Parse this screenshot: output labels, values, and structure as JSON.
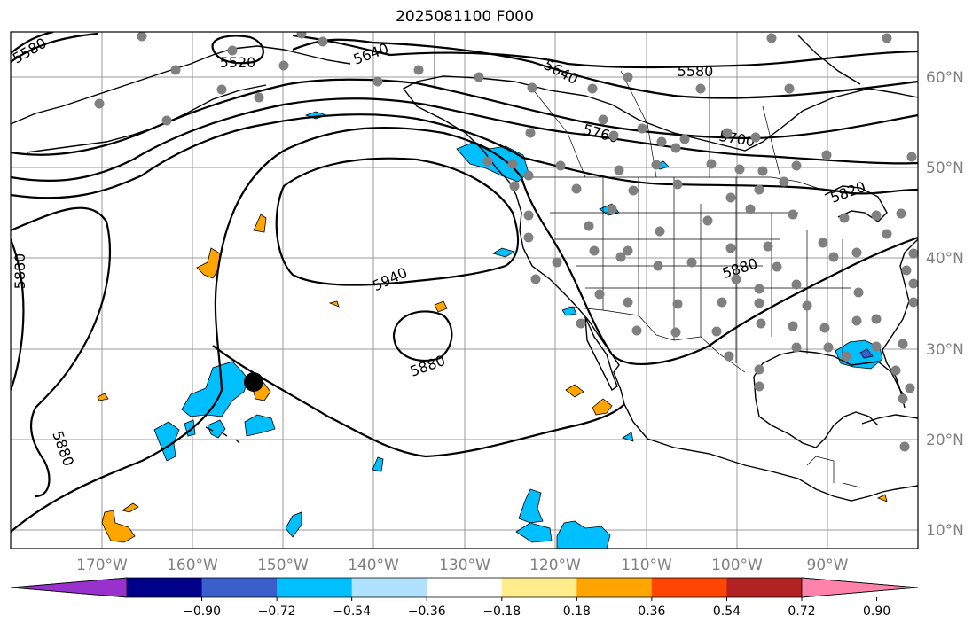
{
  "title": "2025081100 F000",
  "map": {
    "lon_range": [
      -180,
      -80
    ],
    "lat_range": [
      8,
      65
    ],
    "grid": true,
    "lon_ticks": [
      "170°W",
      "160°W",
      "150°W",
      "140°W",
      "130°W",
      "120°W",
      "110°W",
      "100°W",
      "90°W"
    ],
    "lat_ticks": [
      "10°N",
      "20°N",
      "30°N",
      "40°N",
      "50°N",
      "60°N"
    ],
    "contour_labels": [
      "5520",
      "5580",
      "5580",
      "5640",
      "5640",
      "5700",
      "5760",
      "5820",
      "5880",
      "5880",
      "5880",
      "5880",
      "5940"
    ],
    "station_marker_color": "#808080",
    "highlight_marker_color": "#000000"
  },
  "colorbar": {
    "ticks": [
      "−0.90",
      "−0.72",
      "−0.54",
      "−0.36",
      "−0.18",
      "0.18",
      "0.36",
      "0.54",
      "0.72",
      "0.90"
    ],
    "colors": [
      "#9932cc",
      "#00008b",
      "#3a5fcd",
      "#00bfff",
      "#b0e2ff",
      "#ffffff",
      "#ffec8b",
      "#ffa500",
      "#ff4500",
      "#b22222",
      "#ff82ab"
    ],
    "extend": "both"
  }
}
